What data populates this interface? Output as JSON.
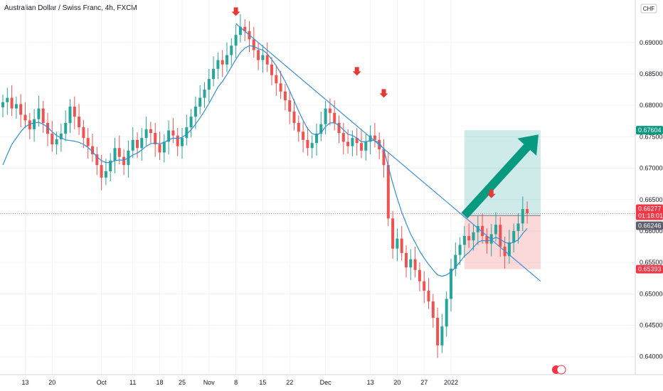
{
  "chart_data": {
    "type": "candlestick",
    "title": "Australian Dollar / Swiss Franc, 4h, FXCM",
    "currency_label": "CHF",
    "y_axis": {
      "side": "right",
      "min": 0.6385,
      "max": 0.6945,
      "ticks": [
        "0.64000",
        "0.64500",
        "0.65000",
        "0.65500",
        "0.66000",
        "0.66500",
        "0.67000",
        "0.67500",
        "0.68000",
        "0.68500",
        "0.69000"
      ]
    },
    "x_axis": {
      "ticks": [
        {
          "label": "13",
          "bar": 5
        },
        {
          "label": "20",
          "bar": 11
        },
        {
          "label": "Oct",
          "bar": 22
        },
        {
          "label": "11",
          "bar": 29
        },
        {
          "label": "18",
          "bar": 35
        },
        {
          "label": "25",
          "bar": 40
        },
        {
          "label": "Nov",
          "bar": 46
        },
        {
          "label": "8",
          "bar": 52
        },
        {
          "label": "15",
          "bar": 58
        },
        {
          "label": "22",
          "bar": 64
        },
        {
          "label": "Dec",
          "bar": 72
        },
        {
          "label": "13",
          "bar": 82
        },
        {
          "label": "20",
          "bar": 88
        },
        {
          "label": "27",
          "bar": 94
        },
        {
          "label": "2022",
          "bar": 100
        }
      ]
    },
    "closes": [
      0.6805,
      0.6812,
      0.6795,
      0.6802,
      0.6785,
      0.6776,
      0.6762,
      0.6778,
      0.6795,
      0.6772,
      0.6755,
      0.6738,
      0.6746,
      0.6755,
      0.6772,
      0.6798,
      0.6782,
      0.6765,
      0.6748,
      0.6735,
      0.6722,
      0.6705,
      0.6685,
      0.6695,
      0.6712,
      0.6732,
      0.6718,
      0.6705,
      0.6728,
      0.6745,
      0.6732,
      0.6748,
      0.6762,
      0.6756,
      0.6738,
      0.6725,
      0.6742,
      0.676,
      0.6752,
      0.6735,
      0.6748,
      0.6765,
      0.6782,
      0.6798,
      0.6812,
      0.6825,
      0.6842,
      0.6858,
      0.6872,
      0.6865,
      0.688,
      0.6895,
      0.6912,
      0.6925,
      0.6918,
      0.6905,
      0.6888,
      0.6872,
      0.688,
      0.6865,
      0.6848,
      0.6835,
      0.6822,
      0.6808,
      0.679,
      0.6772,
      0.6758,
      0.6745,
      0.6732,
      0.674,
      0.6755,
      0.677,
      0.6795,
      0.6788,
      0.6772,
      0.6756,
      0.6742,
      0.6735,
      0.6748,
      0.674,
      0.6728,
      0.6742,
      0.6752,
      0.6745,
      0.673,
      0.6705,
      0.662,
      0.6572,
      0.6588,
      0.6565,
      0.6542,
      0.6555,
      0.6538,
      0.652,
      0.6505,
      0.6488,
      0.6462,
      0.6418,
      0.6448,
      0.6492,
      0.654,
      0.6562,
      0.6578,
      0.6592,
      0.6585,
      0.6598,
      0.6608,
      0.6592,
      0.658,
      0.6595,
      0.661,
      0.6575,
      0.656,
      0.6582,
      0.66,
      0.6612,
      0.6635,
      0.6628
    ],
    "moving_average": [
      0.6705,
      0.6722,
      0.6738,
      0.6748,
      0.6758,
      0.6766,
      0.677,
      0.6772,
      0.6773,
      0.677,
      0.6765,
      0.6758,
      0.6752,
      0.6748,
      0.6745,
      0.6744,
      0.6743,
      0.6741,
      0.6738,
      0.6733,
      0.6726,
      0.6718,
      0.6712,
      0.6709,
      0.6709,
      0.6712,
      0.6713,
      0.6713,
      0.6716,
      0.6721,
      0.6724,
      0.6729,
      0.6735,
      0.6739,
      0.674,
      0.6739,
      0.6741,
      0.6745,
      0.6748,
      0.6747,
      0.6749,
      0.6754,
      0.6761,
      0.677,
      0.678,
      0.6791,
      0.6803,
      0.6816,
      0.6829,
      0.6838,
      0.6849,
      0.6861,
      0.6873,
      0.6884,
      0.6891,
      0.6895,
      0.6894,
      0.689,
      0.6888,
      0.6882,
      0.6873,
      0.6863,
      0.6851,
      0.6838,
      0.6823,
      0.6807,
      0.6791,
      0.6776,
      0.6763,
      0.6755,
      0.6753,
      0.6756,
      0.6766,
      0.6772,
      0.6772,
      0.6768,
      0.6761,
      0.6754,
      0.6752,
      0.6748,
      0.6742,
      0.6742,
      0.6744,
      0.6744,
      0.674,
      0.673,
      0.6703,
      0.6676,
      0.6652,
      0.663,
      0.6612,
      0.6595,
      0.6582,
      0.6568,
      0.6557,
      0.6547,
      0.6538,
      0.653,
      0.6528,
      0.653,
      0.6535,
      0.6542,
      0.6551,
      0.656,
      0.6566,
      0.6574,
      0.6582,
      0.6585,
      0.6584,
      0.6586,
      0.659,
      0.6587,
      0.6582,
      0.658,
      0.6582,
      0.6586,
      0.6596,
      0.6604
    ],
    "trendline": {
      "from": {
        "bar": 52,
        "price": 0.693
      },
      "to": {
        "bar": 120,
        "price": 0.652
      }
    },
    "markers": [
      {
        "name": "arrow-peak-1",
        "bar": 52,
        "price": 0.694
      },
      {
        "name": "arrow-peak-2",
        "bar": 79,
        "price": 0.6845
      },
      {
        "name": "arrow-peak-3",
        "bar": 85,
        "price": 0.681
      },
      {
        "name": "arrow-peak-4",
        "bar": 109,
        "price": 0.665
      }
    ],
    "position": {
      "entry_bar": 103,
      "end_bar": 120,
      "entry": 0.66246,
      "target": 0.67604,
      "stop": 0.65393
    },
    "current_price": {
      "value": "0.66277",
      "countdown": "01:18:01",
      "price": 0.66277
    },
    "labels": {
      "target": "0.67604",
      "entry": "0.66246",
      "stop": "0.65393"
    },
    "colors": {
      "up": "#26a69a",
      "down": "#ef5350",
      "ma": "#2f8fd6",
      "trend": "#3a8fd9",
      "profit": "rgba(38,166,154,0.22)",
      "loss": "rgba(239,83,80,0.22)",
      "target_tag": "#089981",
      "price_tag": "#f23645",
      "entry_tag": "#5d606b",
      "arrow": "#089981",
      "marker": "#e53935"
    }
  }
}
